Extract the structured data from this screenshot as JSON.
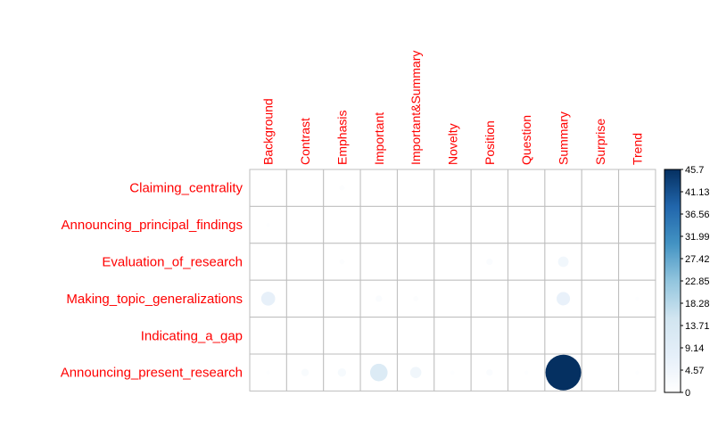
{
  "chart_data": {
    "type": "heatmap",
    "title": "",
    "xlabel": "",
    "ylabel": "",
    "columns": [
      "Background",
      "Contrast",
      "Emphasis",
      "Important",
      "Important&Summary",
      "Novelty",
      "Position",
      "Question",
      "Summary",
      "Surprise",
      "Trend"
    ],
    "rows": [
      "Claiming_centrality",
      "Announcing_principal_findings",
      "Evaluation_of_research",
      "Making_topic_generalizations",
      "Indicating_a_gap",
      "Announcing_present_research"
    ],
    "values": [
      [
        0,
        0,
        1,
        0,
        0,
        0,
        0,
        0,
        0,
        0,
        0
      ],
      [
        0.5,
        0,
        0,
        0,
        0,
        0,
        0,
        0,
        0,
        0,
        0
      ],
      [
        0,
        0,
        1,
        0,
        0,
        0,
        1.5,
        0,
        4,
        0,
        0
      ],
      [
        7,
        0,
        0,
        1.5,
        1,
        0,
        0,
        0,
        6.5,
        0,
        0.5
      ],
      [
        0,
        0,
        0,
        0,
        0,
        0,
        0,
        0,
        0,
        0,
        0
      ],
      [
        0.5,
        2,
        2.5,
        11,
        4.5,
        0.5,
        1.5,
        0.5,
        45.7,
        0,
        0.5
      ]
    ],
    "colorbar": {
      "min": 0,
      "max": 45.7,
      "ticks": [
        "45.7",
        "41.13",
        "36.56",
        "31.99",
        "27.42",
        "22.85",
        "18.28",
        "13.71",
        "9.14",
        "4.57",
        "0"
      ],
      "colors": [
        "#ffffff",
        "#e5eff9",
        "#d1e5f0",
        "#92c5de",
        "#4393c3",
        "#2166ac",
        "#053061"
      ]
    },
    "label_color": "#ff0000",
    "grid": true,
    "legend": "right"
  }
}
